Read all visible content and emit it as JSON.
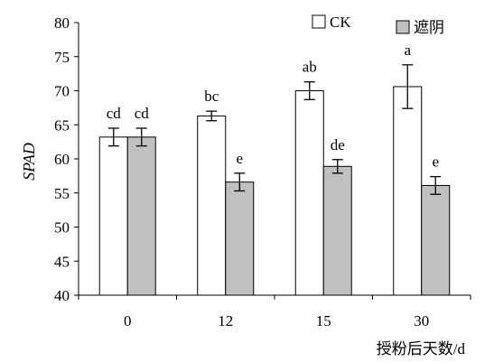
{
  "chart_data": {
    "type": "bar",
    "ylabel": "SPAD",
    "xlabel": "授粉后天数/d",
    "ylim": [
      40,
      80
    ],
    "yticks": [
      40,
      45,
      50,
      55,
      60,
      65,
      70,
      75,
      80
    ],
    "categories": [
      "0",
      "12",
      "15",
      "30"
    ],
    "legend_position": "top-right",
    "grid": false,
    "series": [
      {
        "name": "CK",
        "color": "#ffffff",
        "values": [
          63.2,
          66.3,
          70.0,
          70.6
        ],
        "errors": [
          1.3,
          0.7,
          1.3,
          3.2
        ],
        "labels": [
          "cd",
          "bc",
          "ab",
          "a"
        ]
      },
      {
        "name": "遮阴",
        "color": "#c0c0c0",
        "values": [
          63.2,
          56.6,
          58.9,
          56.1
        ],
        "errors": [
          1.3,
          1.3,
          1.0,
          1.3
        ],
        "labels": [
          "cd",
          "e",
          "de",
          "e"
        ]
      }
    ]
  }
}
